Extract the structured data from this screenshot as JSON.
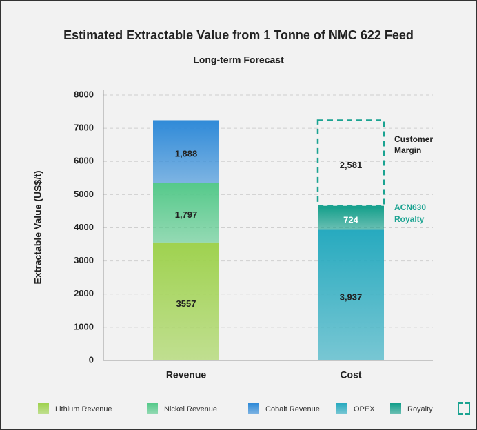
{
  "chart_data": {
    "type": "stacked_bar",
    "title": "Estimated Extractable Value from 1 Tonne of NMC 622 Feed",
    "subtitle": "Long-term Forecast",
    "y_label": "Extractable Value (US$/t)",
    "categories": [
      "Revenue",
      "Cost"
    ],
    "series": [
      {
        "name": "Lithium Revenue",
        "color": "#9fd24f",
        "values": [
          3557,
          null
        ],
        "value_labels": [
          "3557",
          null
        ]
      },
      {
        "name": "Nickel Revenue",
        "color": "#55c98a",
        "values": [
          1797,
          null
        ],
        "value_labels": [
          "1,797",
          null
        ]
      },
      {
        "name": "Cobalt Revenue",
        "color": "#2f8ad8",
        "values": [
          1888,
          null
        ],
        "value_labels": [
          "1,888",
          null
        ]
      },
      {
        "name": "OPEX",
        "color": "#27aabf",
        "values": [
          null,
          3937
        ],
        "value_labels": [
          null,
          "3,937"
        ]
      },
      {
        "name": "Royalty",
        "color": "#129e8a",
        "values": [
          null,
          724
        ],
        "value_labels": [
          null,
          "724"
        ]
      },
      {
        "name": "Margin",
        "color": "#1aa391",
        "style": "dashed",
        "values": [
          null,
          2581
        ],
        "value_labels": [
          null,
          "2,581"
        ]
      }
    ],
    "annotations": [
      {
        "text": [
          "Customer",
          "Margin"
        ],
        "color": "#222222"
      },
      {
        "text": [
          "ACN630",
          "Royalty"
        ],
        "color": "#1aa391"
      }
    ],
    "ylim": [
      0,
      8000
    ],
    "yticks": [
      0,
      1000,
      2000,
      3000,
      4000,
      5000,
      6000,
      7000,
      8000
    ],
    "grid": true,
    "legend": "bottom"
  }
}
